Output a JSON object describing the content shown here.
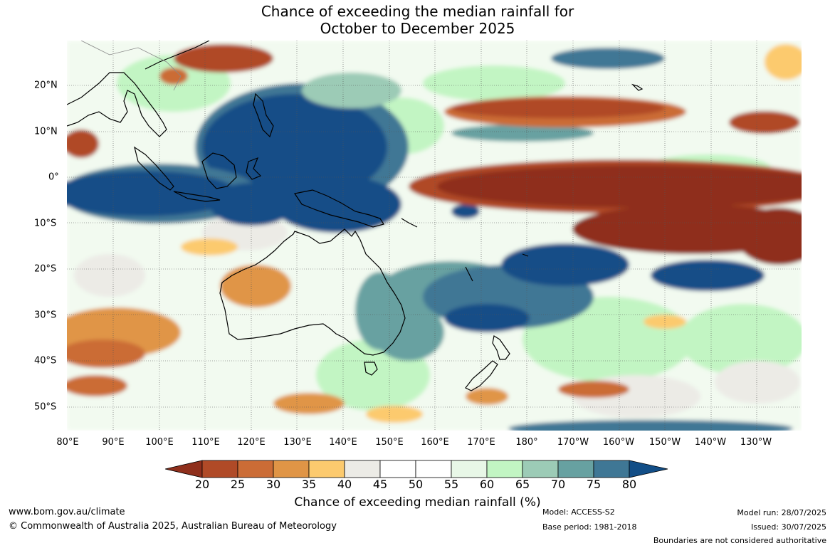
{
  "title_line1": "Chance of exceeding the median rainfall for",
  "title_line2": "October to December 2025",
  "lon_labels": [
    "80°E",
    "90°E",
    "100°E",
    "110°E",
    "120°E",
    "130°E",
    "140°E",
    "150°E",
    "160°E",
    "170°E",
    "180°",
    "170°W",
    "160°W",
    "150°W",
    "140°W",
    "130°W"
  ],
  "lat_labels": [
    "20°N",
    "10°N",
    "0°",
    "10°S",
    "20°S",
    "30°S",
    "40°S",
    "50°S"
  ],
  "colorbar": {
    "ticks": [
      "20",
      "25",
      "30",
      "35",
      "40",
      "45",
      "50",
      "55",
      "60",
      "65",
      "70",
      "75",
      "80"
    ],
    "colors": [
      "#8f2f1c",
      "#b04a27",
      "#cb6c36",
      "#e09546",
      "#fcca6e",
      "#ecebe6",
      "#ffffff",
      "#ffffff",
      "#e8f7e7",
      "#c2f5c3",
      "#9ccbb6",
      "#67a1a1",
      "#3f7795",
      "#124e87"
    ],
    "label": "Chance of exceeding median rainfall (%)"
  },
  "footer": {
    "url": "www.bom.gov.au/climate",
    "copyright": "© Commonwealth of Australia 2025, Australian Bureau of Meteorology",
    "model": "Model: ACCESS-S2",
    "base_period": "Base period: 1981-2018",
    "model_run": "Model run: 28/07/2025",
    "issued": "Issued: 30/07/2025",
    "boundaries": "Boundaries are not considered authoritative"
  }
}
